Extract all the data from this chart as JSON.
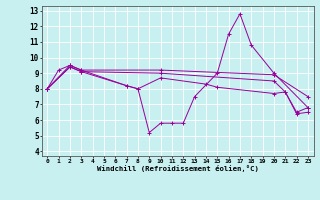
{
  "xlabel": "Windchill (Refroidissement éolien,°C)",
  "background_color": "#c8f0f0",
  "grid_color": "#ffffff",
  "line_color": "#990099",
  "xlim": [
    -0.5,
    23.5
  ],
  "ylim": [
    3.7,
    13.3
  ],
  "yticks": [
    4,
    5,
    6,
    7,
    8,
    9,
    10,
    11,
    12,
    13
  ],
  "xticks": [
    0,
    1,
    2,
    3,
    4,
    5,
    6,
    7,
    8,
    9,
    10,
    11,
    12,
    13,
    14,
    15,
    16,
    17,
    18,
    19,
    20,
    21,
    22,
    23
  ],
  "s1_x": [
    0,
    1,
    2,
    3,
    7,
    8,
    9,
    10,
    11,
    12,
    13,
    15,
    16,
    17,
    18,
    20,
    23
  ],
  "s1_y": [
    8.0,
    9.2,
    9.5,
    9.2,
    8.2,
    8.0,
    5.2,
    5.8,
    5.8,
    5.8,
    7.5,
    9.0,
    11.5,
    12.8,
    10.8,
    9.0,
    6.8
  ],
  "s2_x": [
    0,
    2,
    3,
    10,
    20,
    23
  ],
  "s2_y": [
    8.0,
    9.5,
    9.2,
    9.2,
    8.9,
    7.5
  ],
  "s3_x": [
    0,
    2,
    3,
    10,
    20,
    21,
    22,
    23
  ],
  "s3_y": [
    8.0,
    9.4,
    9.1,
    9.0,
    8.5,
    7.8,
    6.5,
    6.8
  ],
  "s4_x": [
    0,
    2,
    3,
    7,
    8,
    10,
    14,
    15,
    20,
    21,
    22,
    23
  ],
  "s4_y": [
    8.0,
    9.4,
    9.1,
    8.2,
    8.0,
    8.7,
    8.3,
    8.1,
    7.7,
    7.8,
    6.4,
    6.5
  ]
}
